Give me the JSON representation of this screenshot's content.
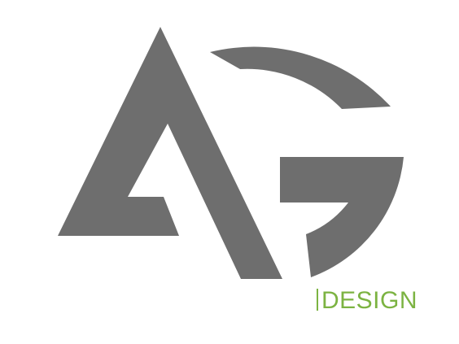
{
  "logo": {
    "monogram_letters": "AG",
    "wordmark": "DESIGN",
    "colors": {
      "mark": "#6e6e6e",
      "wordmark": "#7cb342",
      "background": "#ffffff"
    }
  }
}
